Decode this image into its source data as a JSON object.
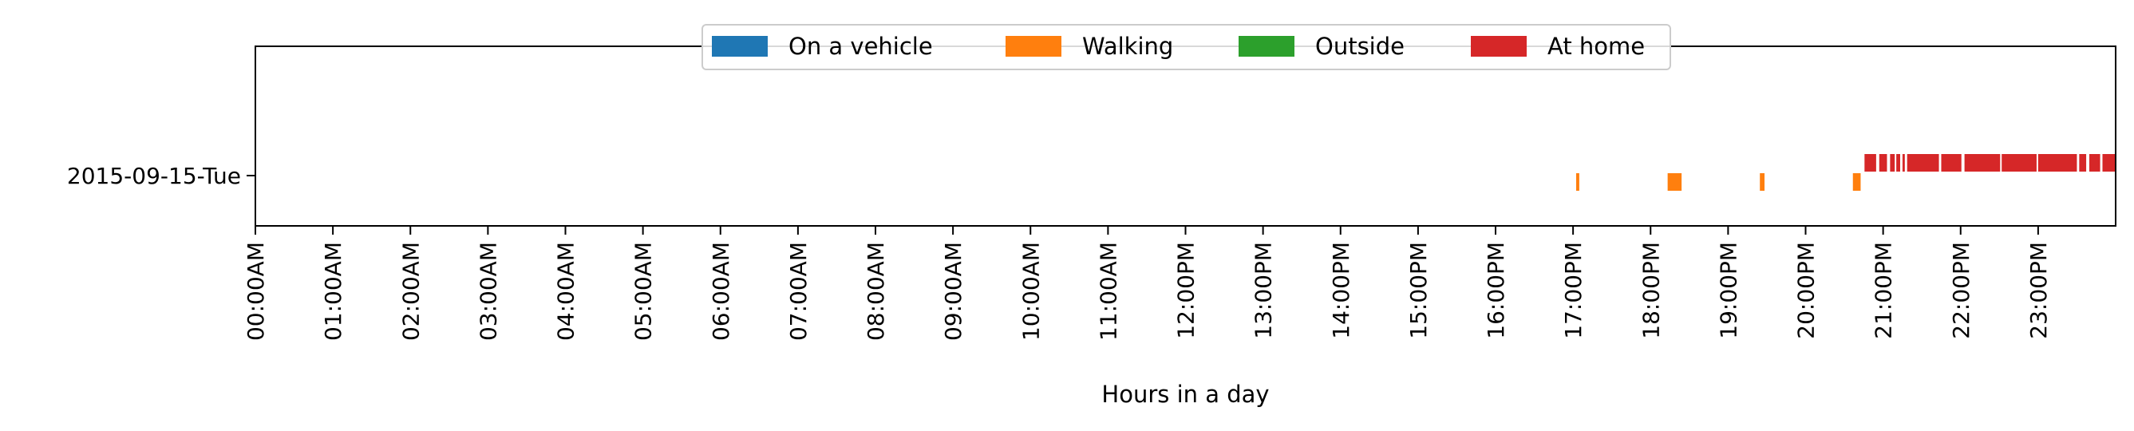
{
  "chart_data": {
    "type": "timeline",
    "xlabel": "Hours in a day",
    "xlim": [
      0,
      24
    ],
    "x_ticks": [
      {
        "value": 0,
        "label": "00:00AM"
      },
      {
        "value": 1,
        "label": "01:00AM"
      },
      {
        "value": 2,
        "label": "02:00AM"
      },
      {
        "value": 3,
        "label": "03:00AM"
      },
      {
        "value": 4,
        "label": "04:00AM"
      },
      {
        "value": 5,
        "label": "05:00AM"
      },
      {
        "value": 6,
        "label": "06:00AM"
      },
      {
        "value": 7,
        "label": "07:00AM"
      },
      {
        "value": 8,
        "label": "08:00AM"
      },
      {
        "value": 9,
        "label": "09:00AM"
      },
      {
        "value": 10,
        "label": "10:00AM"
      },
      {
        "value": 11,
        "label": "11:00AM"
      },
      {
        "value": 12,
        "label": "12:00PM"
      },
      {
        "value": 13,
        "label": "13:00PM"
      },
      {
        "value": 14,
        "label": "14:00PM"
      },
      {
        "value": 15,
        "label": "15:00PM"
      },
      {
        "value": 16,
        "label": "16:00PM"
      },
      {
        "value": 17,
        "label": "17:00PM"
      },
      {
        "value": 18,
        "label": "18:00PM"
      },
      {
        "value": 19,
        "label": "19:00PM"
      },
      {
        "value": 20,
        "label": "20:00PM"
      },
      {
        "value": 21,
        "label": "21:00PM"
      },
      {
        "value": 22,
        "label": "22:00PM"
      },
      {
        "value": 23,
        "label": "23:00PM"
      }
    ],
    "rows": [
      {
        "label": "2015-09-15-Tue"
      }
    ],
    "legend": {
      "placement": "upper-center",
      "entries": [
        {
          "name": "On a vehicle",
          "color": "#1f77b4"
        },
        {
          "name": "Walking",
          "color": "#ff7f0e"
        },
        {
          "name": "Outside",
          "color": "#2ca02c"
        },
        {
          "name": "At home",
          "color": "#d62728"
        }
      ]
    },
    "series": [
      {
        "name": "On a vehicle",
        "color": "#1f77b4",
        "intervals": []
      },
      {
        "name": "Walking",
        "color": "#ff7f0e",
        "intervals": [
          [
            17.04,
            17.08
          ],
          [
            18.22,
            18.4
          ],
          [
            19.41,
            19.47
          ],
          [
            20.61,
            20.71
          ]
        ]
      },
      {
        "name": "Outside",
        "color": "#2ca02c",
        "intervals": []
      },
      {
        "name": "At home",
        "color": "#d62728",
        "intervals": [
          [
            20.76,
            20.91
          ],
          [
            20.95,
            21.05
          ],
          [
            21.09,
            21.15
          ],
          [
            21.17,
            21.22
          ],
          [
            21.25,
            21.28
          ],
          [
            21.31,
            21.72
          ],
          [
            21.75,
            22.01
          ],
          [
            22.05,
            22.51
          ],
          [
            22.53,
            22.98
          ],
          [
            23.0,
            23.5
          ],
          [
            23.53,
            23.62
          ],
          [
            23.66,
            23.8
          ],
          [
            23.83,
            24.0
          ]
        ]
      }
    ]
  }
}
